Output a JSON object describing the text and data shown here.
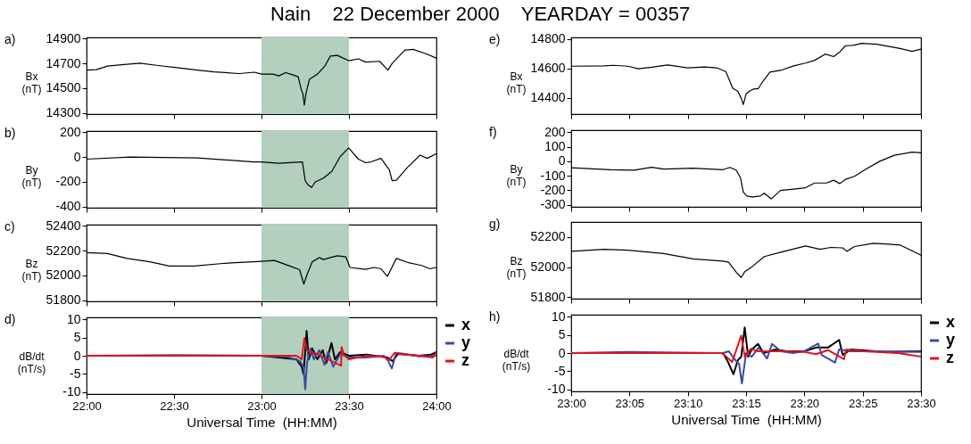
{
  "chart_data": [
    {
      "type": "line",
      "title": "Nain    22 December 2000    YEARDAY = 00357",
      "ylabel": "Bx (nT)",
      "annotations": [
        "a)"
      ],
      "xlim": [
        22,
        24
      ],
      "xticks": [
        {
          "value": 22,
          "label": null
        },
        {
          "value": 22.5,
          "label": null
        },
        {
          "value": 23,
          "label": null
        },
        {
          "value": 23.5,
          "label": null
        },
        {
          "value": 24,
          "label": null
        }
      ],
      "ylim": [
        14290,
        14910
      ],
      "yticks": [
        14300,
        14500,
        14700,
        14900
      ],
      "tick_labels": "y",
      "bands": [
        {
          "axis": "x",
          "from": 23,
          "to": 23.5,
          "color": "#b3cfbd"
        }
      ],
      "series": [
        {
          "color": "#000000",
          "x": [
            22,
            22.056,
            22.12,
            22.2,
            22.305,
            22.41,
            22.505,
            22.633,
            22.73,
            22.873,
            22.96,
            23,
            23.066,
            23.098,
            23.138,
            23.178,
            23.21,
            23.226,
            23.237,
            23.245,
            23.255,
            23.274,
            23.32,
            23.362,
            23.394,
            23.434,
            23.498,
            23.554,
            23.595,
            23.675,
            23.723,
            23.747,
            23.82,
            23.867,
            23.947,
            23.998
          ],
          "values": [
            14646,
            14650,
            14678,
            14689,
            14702,
            14683,
            14668,
            14646,
            14631,
            14618,
            14629,
            14614,
            14614,
            14599,
            14625,
            14608,
            14592,
            14496,
            14453,
            14362,
            14463,
            14571,
            14614,
            14678,
            14760,
            14765,
            14722,
            14737,
            14711,
            14717,
            14646,
            14700,
            14808,
            14814,
            14775,
            14743
          ]
        }
      ]
    },
    {
      "type": "line",
      "ylabel": "By (nT)",
      "annotations": [
        "b)"
      ],
      "xlim": [
        22,
        24
      ],
      "xticks": [
        {
          "value": 22,
          "label": null
        },
        {
          "value": 22.5,
          "label": null
        },
        {
          "value": 23,
          "label": null
        },
        {
          "value": 23.5,
          "label": null
        },
        {
          "value": 24,
          "label": null
        }
      ],
      "ylim": [
        -410,
        210
      ],
      "yticks": [
        -400,
        -200,
        0,
        200
      ],
      "tick_labels": "y",
      "bands": [
        {
          "axis": "x",
          "from": 23,
          "to": 23.5,
          "color": "#b3cfbd"
        }
      ],
      "series": [
        {
          "color": "#000000",
          "x": [
            22,
            22.248,
            22.633,
            22.954,
            23,
            23.098,
            23.234,
            23.25,
            23.266,
            23.287,
            23.306,
            23.354,
            23.402,
            23.45,
            23.498,
            23.554,
            23.595,
            23.627,
            23.683,
            23.731,
            23.747,
            23.771,
            23.835,
            23.907,
            23.947,
            23.998
          ],
          "values": [
            -17,
            0,
            -7,
            -39,
            -39,
            -50,
            -39,
            -192,
            -225,
            -246,
            -203,
            -170,
            -116,
            4,
            74,
            -17,
            -46,
            -39,
            -11,
            -105,
            -192,
            -187,
            -83,
            15,
            -11,
            26
          ]
        }
      ]
    },
    {
      "type": "line",
      "ylabel": "Bz (nT)",
      "annotations": [
        "c)"
      ],
      "xlim": [
        22,
        24
      ],
      "xticks": [
        {
          "value": 22,
          "label": null
        },
        {
          "value": 22.5,
          "label": null
        },
        {
          "value": 23,
          "label": null
        },
        {
          "value": 23.5,
          "label": null
        },
        {
          "value": 24,
          "label": null
        }
      ],
      "ylim": [
        51790,
        52410
      ],
      "yticks": [
        51800,
        52000,
        52200,
        52400
      ],
      "tick_labels": "y",
      "bands": [
        {
          "axis": "x",
          "from": 23,
          "to": 23.5,
          "color": "#b3cfbd"
        }
      ],
      "series": [
        {
          "color": "#000000",
          "x": [
            22,
            22.12,
            22.232,
            22.361,
            22.473,
            22.617,
            22.793,
            23,
            23.074,
            23.162,
            23.218,
            23.242,
            23.258,
            23.29,
            23.33,
            23.354,
            23.394,
            23.434,
            23.482,
            23.506,
            23.595,
            23.643,
            23.683,
            23.72,
            23.771,
            23.835,
            23.915,
            23.963,
            23.998
          ],
          "values": [
            52184,
            52177,
            52137,
            52110,
            52076,
            52076,
            52098,
            52114,
            52121,
            52076,
            52046,
            51929,
            51997,
            52110,
            52144,
            52128,
            52144,
            52159,
            52150,
            52064,
            52049,
            52064,
            52053,
            51992,
            52137,
            52105,
            52080,
            52053,
            52064
          ]
        }
      ]
    },
    {
      "type": "line",
      "ylabel": "dB/dt (nT/s)",
      "xlabel": "Universal Time  (HH:MM)",
      "annotations": [
        "d)"
      ],
      "legend": "right",
      "xlim": [
        22,
        24
      ],
      "xticks": [
        {
          "value": 22,
          "label": "22:00"
        },
        {
          "value": 22.5,
          "label": "22:30"
        },
        {
          "value": 23,
          "label": "23:00"
        },
        {
          "value": 23.5,
          "label": "23:30"
        },
        {
          "value": 24,
          "label": "24:00"
        }
      ],
      "ylim": [
        -10.5,
        10.5
      ],
      "yticks": [
        -10,
        -5,
        0,
        5,
        10
      ],
      "bands": [
        {
          "axis": "x",
          "from": 23,
          "to": 23.5,
          "color": "#b3cfbd"
        }
      ],
      "series": [
        {
          "name": "x",
          "color": "#000000",
          "x": [
            22,
            22.5,
            23,
            23.1,
            23.2,
            23.23,
            23.24,
            23.25,
            23.258,
            23.27,
            23.29,
            23.32,
            23.35,
            23.37,
            23.4,
            23.42,
            23.45,
            23.5,
            23.6,
            23.72,
            23.75,
            23.78,
            23.9,
            23.97,
            24
          ],
          "values": [
            0,
            0.1,
            0,
            -0.5,
            -1,
            -3,
            -5,
            1,
            6.8,
            -1,
            2,
            -1,
            1.5,
            -2,
            3.5,
            -1,
            1,
            0,
            0.3,
            -0.5,
            -1.5,
            0.5,
            0,
            0.3,
            1
          ]
        },
        {
          "name": "y",
          "color": "#3a4aa5",
          "x": [
            22,
            23,
            23.15,
            23.22,
            23.24,
            23.25,
            23.26,
            23.28,
            23.3,
            23.33,
            23.36,
            23.38,
            23.41,
            23.45,
            23.5,
            23.6,
            23.7,
            23.725,
            23.745,
            23.77,
            23.82,
            23.9,
            24
          ],
          "values": [
            0,
            0,
            -0.3,
            -1.5,
            -3,
            -9.2,
            -2,
            2,
            -1,
            1.5,
            -2.5,
            1,
            -3,
            0.5,
            -0.5,
            -0.5,
            0,
            -1.5,
            -3.5,
            0.8,
            0.5,
            -0.2,
            0
          ]
        },
        {
          "name": "z",
          "color": "#e0141e",
          "x": [
            22,
            22.8,
            23,
            23.2,
            23.23,
            23.245,
            23.26,
            23.28,
            23.32,
            23.36,
            23.455,
            23.458,
            23.47,
            23.5,
            23.55,
            23.6,
            23.7,
            23.73,
            23.76,
            23.8,
            23.9,
            23.98,
            24
          ],
          "values": [
            0,
            0,
            0,
            0,
            -1,
            4.8,
            1.5,
            0.8,
            0.5,
            -0.5,
            -2.7,
            2.4,
            0.3,
            -1,
            -0.5,
            0,
            -0.3,
            -1.2,
            0.8,
            0.5,
            0,
            -0.5,
            1
          ]
        }
      ]
    },
    {
      "type": "line",
      "ylabel": "Bx (nT)",
      "annotations": [
        "e)"
      ],
      "xlim": [
        23,
        23.5
      ],
      "xticks": [
        {
          "value": 23,
          "label": null
        },
        {
          "value": 23.08333,
          "label": null
        },
        {
          "value": 23.16667,
          "label": null
        },
        {
          "value": 23.25,
          "label": null
        },
        {
          "value": 23.33333,
          "label": null
        },
        {
          "value": 23.41667,
          "label": null
        },
        {
          "value": 23.5,
          "label": null
        }
      ],
      "ylim": [
        14290,
        14810
      ],
      "yticks": [
        14400,
        14600,
        14800
      ],
      "tick_labels": "y",
      "series": [
        {
          "color": "#000000",
          "x": [
            23,
            23.047,
            23.06,
            23.081,
            23.096,
            23.115,
            23.138,
            23.166,
            23.191,
            23.208,
            23.221,
            23.231,
            23.238,
            23.243,
            23.246,
            23.25,
            23.255,
            23.261,
            23.267,
            23.274,
            23.284,
            23.301,
            23.318,
            23.335,
            23.348,
            23.363,
            23.375,
            23.384,
            23.392,
            23.403,
            23.415,
            23.437,
            23.47,
            23.487,
            23.5
          ],
          "values": [
            14615,
            14617,
            14621,
            14615,
            14598,
            14608,
            14623,
            14604,
            14610,
            14604,
            14579,
            14465,
            14446,
            14398,
            14354,
            14427,
            14446,
            14461,
            14461,
            14512,
            14575,
            14589,
            14617,
            14636,
            14655,
            14697,
            14680,
            14712,
            14754,
            14756,
            14770,
            14764,
            14735,
            14716,
            14731
          ]
        }
      ]
    },
    {
      "type": "line",
      "ylabel": "By (nT)",
      "annotations": [
        "f)"
      ],
      "xlim": [
        23,
        23.5
      ],
      "xticks": [
        {
          "value": 23,
          "label": null
        },
        {
          "value": 23.08333,
          "label": null
        },
        {
          "value": 23.16667,
          "label": null
        },
        {
          "value": 23.25,
          "label": null
        },
        {
          "value": 23.33333,
          "label": null
        },
        {
          "value": 23.41667,
          "label": null
        },
        {
          "value": 23.5,
          "label": null
        }
      ],
      "ylim": [
        -315,
        215
      ],
      "yticks": [
        -300,
        -200,
        -100,
        0,
        100,
        200
      ],
      "tick_labels": "y",
      "series": [
        {
          "color": "#000000",
          "x": [
            23,
            23.056,
            23.09,
            23.115,
            23.132,
            23.174,
            23.217,
            23.227,
            23.236,
            23.242,
            23.246,
            23.251,
            23.259,
            23.27,
            23.276,
            23.286,
            23.299,
            23.318,
            23.335,
            23.348,
            23.365,
            23.375,
            23.384,
            23.392,
            23.405,
            23.42,
            23.441,
            23.462,
            23.487,
            23.5
          ],
          "values": [
            -44,
            -58,
            -62,
            -42,
            -54,
            -48,
            -58,
            -42,
            -62,
            -115,
            -212,
            -240,
            -246,
            -240,
            -221,
            -260,
            -202,
            -192,
            -183,
            -150,
            -150,
            -131,
            -154,
            -125,
            -104,
            -58,
            0,
            42,
            63,
            58
          ]
        }
      ]
    },
    {
      "type": "line",
      "ylabel": "Bz (nT)",
      "annotations": [
        "g)"
      ],
      "xlim": [
        23,
        23.5
      ],
      "xticks": [
        {
          "value": 23,
          "label": null
        },
        {
          "value": 23.08333,
          "label": null
        },
        {
          "value": 23.16667,
          "label": null
        },
        {
          "value": 23.25,
          "label": null
        },
        {
          "value": 23.33333,
          "label": null
        },
        {
          "value": 23.41667,
          "label": null
        },
        {
          "value": 23.5,
          "label": null
        }
      ],
      "ylim": [
        51790,
        52300
      ],
      "yticks": [
        51800,
        52000,
        52200
      ],
      "tick_labels": "y",
      "series": [
        {
          "color": "#000000",
          "x": [
            23,
            23.047,
            23.081,
            23.132,
            23.174,
            23.217,
            23.225,
            23.236,
            23.243,
            23.248,
            23.259,
            23.276,
            23.301,
            23.335,
            23.356,
            23.371,
            23.388,
            23.394,
            23.405,
            23.432,
            23.454,
            23.47,
            23.487,
            23.5
          ],
          "values": [
            52105,
            52118,
            52112,
            52090,
            52055,
            52040,
            52032,
            51966,
            51931,
            51969,
            52004,
            52070,
            52101,
            52141,
            52118,
            52131,
            52128,
            52105,
            52137,
            52158,
            52152,
            52147,
            52109,
            52080
          ]
        }
      ]
    },
    {
      "type": "line",
      "ylabel": "dB/dt (nT/s)",
      "xlabel": "Universal Time  (HH:MM)",
      "annotations": [
        "h)"
      ],
      "legend": "right",
      "xlim": [
        23,
        23.5
      ],
      "xticks": [
        {
          "value": 23,
          "label": "23:00"
        },
        {
          "value": 23.08333,
          "label": "23:05"
        },
        {
          "value": 23.16667,
          "label": "23:10"
        },
        {
          "value": 23.25,
          "label": "23:15"
        },
        {
          "value": 23.33333,
          "label": "23:20"
        },
        {
          "value": 23.41667,
          "label": "23:25"
        },
        {
          "value": 23.5,
          "label": "23:30"
        }
      ],
      "ylim": [
        -10.5,
        10.5
      ],
      "yticks": [
        -10,
        -5,
        0,
        5,
        10
      ],
      "series": [
        {
          "name": "x",
          "color": "#000000",
          "x": [
            23,
            23.167,
            23.217,
            23.223,
            23.232,
            23.238,
            23.243,
            23.248,
            23.253,
            23.258,
            23.267,
            23.275,
            23.292,
            23.308,
            23.333,
            23.35,
            23.367,
            23.383,
            23.388,
            23.4,
            23.45,
            23.5
          ],
          "values": [
            0,
            0,
            0,
            -2,
            -5.8,
            -2,
            -1,
            7,
            -1,
            1,
            2.5,
            0,
            1,
            0.5,
            0.5,
            1.5,
            1.5,
            3.6,
            -0.5,
            1,
            0.3,
            0.5
          ]
        },
        {
          "name": "y",
          "color": "#3a4aa5",
          "x": [
            23,
            23.083,
            23.217,
            23.225,
            23.235,
            23.24,
            23.244,
            23.25,
            23.258,
            23.268,
            23.28,
            23.287,
            23.3,
            23.317,
            23.333,
            23.353,
            23.358,
            23.377,
            23.383,
            23.4,
            23.433,
            23.5
          ],
          "values": [
            0,
            0.3,
            0,
            0.5,
            -2,
            -3,
            -8.3,
            0,
            -1,
            1.5,
            -1.5,
            2.5,
            0.5,
            0,
            0.5,
            2.6,
            -0.5,
            -2.6,
            1,
            0.5,
            0.5,
            0.3
          ]
        },
        {
          "name": "z",
          "color": "#e0141e",
          "x": [
            23,
            23.215,
            23.222,
            23.23,
            23.243,
            23.248,
            23.257,
            23.267,
            23.3,
            23.333,
            23.35,
            23.367,
            23.39,
            23.393,
            23.417,
            23.467,
            23.5
          ],
          "values": [
            0,
            0,
            -1,
            -2.5,
            4.8,
            -1,
            1.2,
            0.5,
            0.5,
            0.3,
            -0.3,
            0.8,
            -1.7,
            1,
            0.5,
            0,
            -1
          ]
        }
      ]
    }
  ]
}
